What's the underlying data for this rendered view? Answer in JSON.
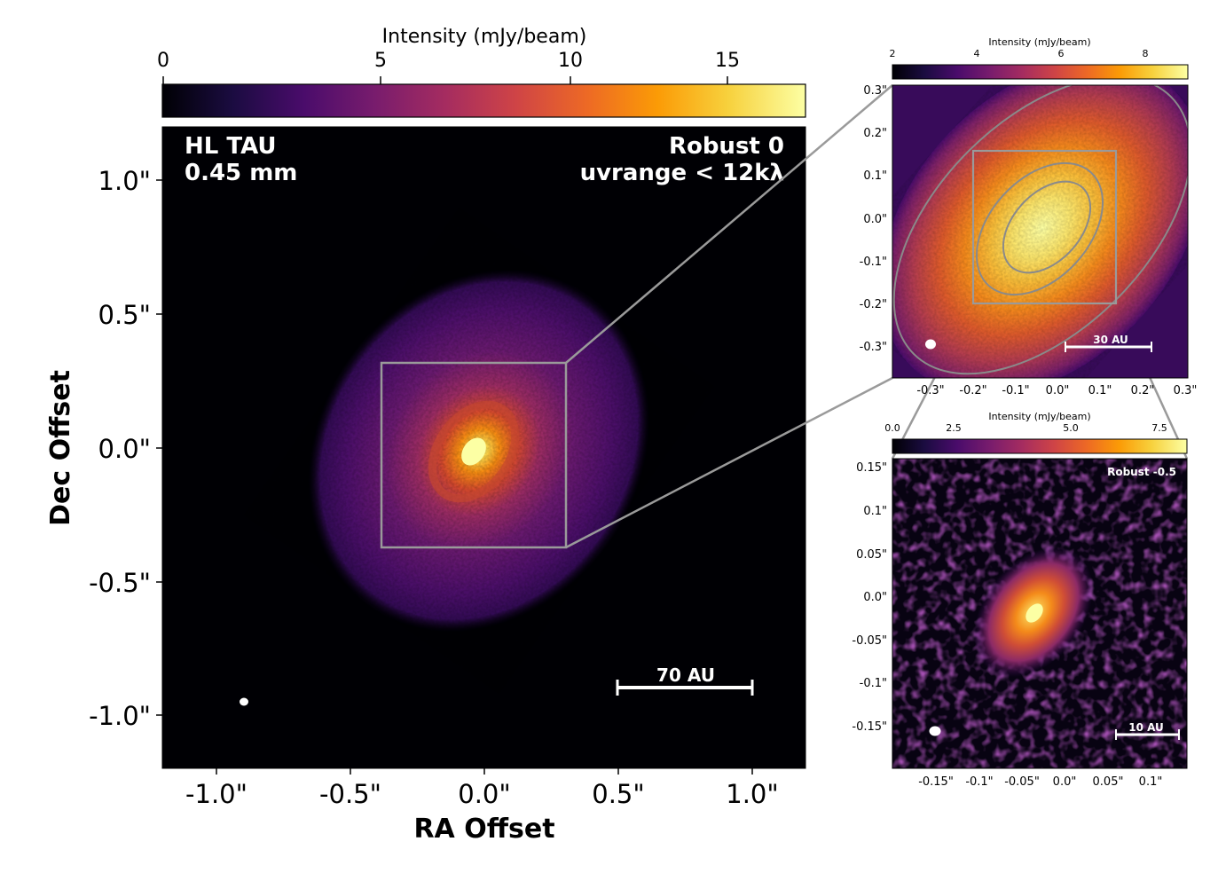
{
  "main": {
    "cbar_label": "Intensity (mJy/beam)",
    "cbar_ticks": [
      "0",
      "5",
      "10",
      "15"
    ],
    "cbar_range": [
      0,
      16.8
    ],
    "title_left": [
      "HL TAU",
      "0.45 mm"
    ],
    "title_right": [
      "Robust 0",
      "uvrange < 12kλ"
    ],
    "xlabel": "RA Offset",
    "ylabel": "Dec Offset",
    "x_ticks": [
      "-1.0\"",
      "-0.5\"",
      "0.0\"",
      "0.5\"",
      "1.0\""
    ],
    "y_ticks": [
      "1.0\"",
      "0.5\"",
      "0.0\"",
      "-0.5\"",
      "-1.0\""
    ],
    "scalebar_label": "70 AU"
  },
  "inset_top": {
    "cbar_label": "Intensity (mJy/beam)",
    "cbar_ticks": [
      "2",
      "4",
      "6",
      "8"
    ],
    "y_ticks": [
      "0.3\"",
      "0.2\"",
      "0.1\"",
      "0.0\"",
      "-0.1\"",
      "-0.2\"",
      "-0.3\""
    ],
    "x_ticks": [
      "-0.3\"",
      "-0.2\"",
      "-0.1\"",
      "0.0\"",
      "0.1\"",
      "0.2\"",
      "0.3\""
    ],
    "scalebar_label": "30 AU"
  },
  "inset_bottom": {
    "cbar_label": "Intensity (mJy/beam)",
    "cbar_ticks": [
      "0.0",
      "2.5",
      "5.0",
      "7.5"
    ],
    "title": "Robust -0.5",
    "y_ticks": [
      "0.15\"",
      "0.1\"",
      "0.05\"",
      "0.0\"",
      "-0.05\"",
      "-0.1\"",
      "-0.15\""
    ],
    "x_ticks": [
      "-0.15\"",
      "-0.1\"",
      "-0.05\"",
      "0.0\"",
      "0.05\"",
      "0.1\""
    ],
    "scalebar_label": "10 AU"
  },
  "colors": {
    "inferno": [
      "#000004",
      "#1b0c41",
      "#4a0c6b",
      "#781c6d",
      "#a52c60",
      "#cf4446",
      "#ed6925",
      "#fb9b06",
      "#f7d13d",
      "#fcffa4"
    ],
    "zoom_box": "#999999",
    "background": "#ffffff",
    "text": "#000000",
    "annotation": "#ffffff"
  }
}
